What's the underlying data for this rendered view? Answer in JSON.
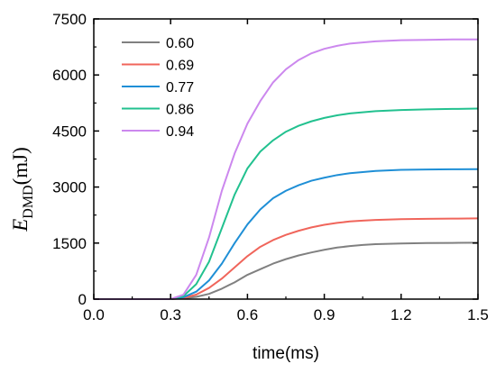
{
  "chart_data": {
    "type": "line",
    "title": "",
    "xlabel": "time(ms)",
    "ylabel": {
      "main": "E",
      "subscript": "DMD",
      "unit": "(mJ)"
    },
    "xlim": [
      0.0,
      1.5
    ],
    "ylim": [
      0,
      7500
    ],
    "xticks": [
      0.0,
      0.3,
      0.6,
      0.9,
      1.2,
      1.5
    ],
    "xtick_labels": [
      "0.0",
      "0.3",
      "0.6",
      "0.9",
      "1.2",
      "1.5"
    ],
    "yticks": [
      0,
      1500,
      3000,
      4500,
      6000,
      7500
    ],
    "ytick_labels": [
      "0",
      "1500",
      "3000",
      "4500",
      "6000",
      "7500"
    ],
    "grid": false,
    "legend": "top-left",
    "x": [
      0.0,
      0.15,
      0.3,
      0.35,
      0.4,
      0.45,
      0.5,
      0.55,
      0.6,
      0.65,
      0.7,
      0.75,
      0.8,
      0.85,
      0.9,
      0.95,
      1.0,
      1.05,
      1.1,
      1.2,
      1.3,
      1.4,
      1.5
    ],
    "series": [
      {
        "name": "0.60",
        "color": "#808080",
        "values": [
          0,
          0,
          0,
          20,
          60,
          140,
          280,
          450,
          650,
          800,
          950,
          1070,
          1170,
          1250,
          1320,
          1380,
          1420,
          1450,
          1470,
          1490,
          1500,
          1505,
          1510
        ]
      },
      {
        "name": "0.69",
        "color": "#f0655b",
        "values": [
          0,
          0,
          0,
          30,
          120,
          300,
          550,
          850,
          1150,
          1400,
          1580,
          1720,
          1830,
          1920,
          1990,
          2040,
          2080,
          2100,
          2120,
          2140,
          2150,
          2155,
          2160
        ]
      },
      {
        "name": "0.77",
        "color": "#1f8fd6",
        "values": [
          0,
          0,
          0,
          50,
          200,
          500,
          950,
          1500,
          2000,
          2400,
          2700,
          2900,
          3050,
          3170,
          3250,
          3320,
          3370,
          3400,
          3430,
          3460,
          3470,
          3475,
          3480
        ]
      },
      {
        "name": "0.86",
        "color": "#22c18f",
        "values": [
          0,
          0,
          0,
          80,
          400,
          1000,
          1900,
          2800,
          3500,
          3950,
          4250,
          4480,
          4640,
          4760,
          4850,
          4920,
          4970,
          5000,
          5030,
          5060,
          5080,
          5090,
          5100
        ]
      },
      {
        "name": "0.94",
        "color": "#cc88ee",
        "values": [
          0,
          0,
          0,
          120,
          650,
          1650,
          2900,
          3900,
          4700,
          5300,
          5800,
          6150,
          6400,
          6580,
          6700,
          6780,
          6840,
          6870,
          6900,
          6930,
          6940,
          6950,
          6950
        ]
      }
    ]
  }
}
